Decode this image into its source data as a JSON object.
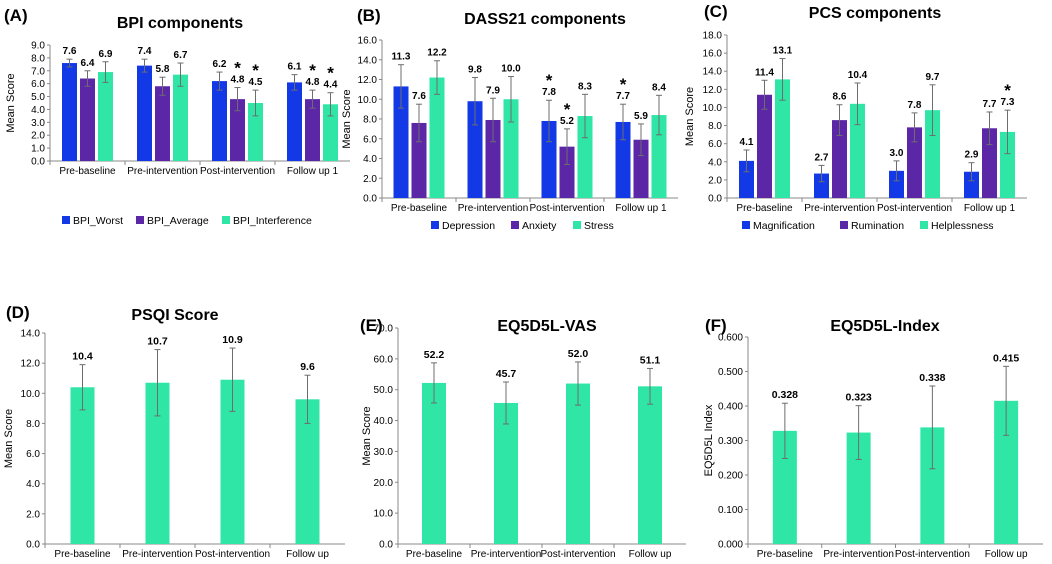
{
  "colors": {
    "blue": "#1338e6",
    "purple": "#5b27a6",
    "green": "#2fe6a7",
    "axis": "#888888",
    "text": "#000000",
    "errbar": "#6d6d6d"
  },
  "chart_data": [
    {
      "panel_label": "(A)",
      "title": "BPI components",
      "type": "bar",
      "ylabel": "Mean Score",
      "xlabel": "",
      "ylim": [
        0,
        9
      ],
      "ytick_step": 1,
      "ytick_decimals": 1,
      "value_decimals": 1,
      "categories": [
        "Pre-baseline",
        "Pre-intervention",
        "Post-intervention",
        "Follow up 1"
      ],
      "series": [
        {
          "name": "BPI_Worst",
          "color": "blue",
          "values": [
            7.6,
            7.4,
            6.2,
            6.1
          ],
          "err": [
            0.3,
            0.5,
            0.7,
            0.6
          ],
          "stars": [
            false,
            false,
            false,
            false
          ]
        },
        {
          "name": "BPI_Average",
          "color": "purple",
          "values": [
            6.4,
            5.8,
            4.8,
            4.8
          ],
          "err": [
            0.6,
            0.7,
            0.9,
            0.7
          ],
          "stars": [
            false,
            false,
            true,
            true
          ]
        },
        {
          "name": "BPI_Interference",
          "color": "green",
          "values": [
            6.9,
            6.7,
            4.5,
            4.4
          ],
          "err": [
            0.8,
            0.9,
            1.0,
            0.9
          ],
          "stars": [
            false,
            false,
            true,
            true
          ]
        }
      ],
      "grid": false,
      "legend": "bottom"
    },
    {
      "panel_label": "(B)",
      "title": "DASS21 components",
      "type": "bar",
      "ylabel": "Mean Score",
      "xlabel": "",
      "ylim": [
        0,
        16
      ],
      "ytick_step": 2,
      "ytick_decimals": 1,
      "value_decimals": 1,
      "categories": [
        "Pre-baseline",
        "Pre-intervention",
        "Post-intervention",
        "Follow up 1"
      ],
      "series": [
        {
          "name": "Depression",
          "color": "blue",
          "values": [
            11.3,
            9.8,
            7.8,
            7.7
          ],
          "err": [
            2.2,
            2.4,
            2.1,
            1.8
          ],
          "stars": [
            false,
            false,
            true,
            true
          ]
        },
        {
          "name": "Anxiety",
          "color": "purple",
          "values": [
            7.6,
            7.9,
            5.2,
            5.9
          ],
          "err": [
            1.9,
            2.2,
            1.8,
            1.6
          ],
          "stars": [
            false,
            false,
            true,
            false
          ]
        },
        {
          "name": "Stress",
          "color": "green",
          "values": [
            12.2,
            10.0,
            8.3,
            8.4
          ],
          "err": [
            1.7,
            2.3,
            2.2,
            2.0
          ],
          "stars": [
            false,
            false,
            false,
            false
          ]
        }
      ],
      "grid": false,
      "legend": "bottom"
    },
    {
      "panel_label": "(C)",
      "title": "PCS components",
      "type": "bar",
      "ylabel": "Mean Score",
      "xlabel": "",
      "ylim": [
        0,
        18
      ],
      "ytick_step": 2,
      "ytick_decimals": 1,
      "value_decimals": 1,
      "categories": [
        "Pre-baseline",
        "Pre-intervention",
        "Post-intervention",
        "Follow up 1"
      ],
      "series": [
        {
          "name": "Magnification",
          "color": "blue",
          "values": [
            4.1,
            2.7,
            3.0,
            2.9
          ],
          "err": [
            1.2,
            0.9,
            1.1,
            1.0
          ],
          "stars": [
            false,
            false,
            false,
            false
          ]
        },
        {
          "name": "Rumination",
          "color": "purple",
          "values": [
            11.4,
            8.6,
            7.8,
            7.7
          ],
          "err": [
            1.6,
            1.7,
            1.6,
            1.8
          ],
          "stars": [
            false,
            false,
            false,
            false
          ]
        },
        {
          "name": "Helplessness",
          "color": "green",
          "values": [
            13.1,
            10.4,
            9.7,
            7.3
          ],
          "err": [
            2.3,
            2.3,
            2.8,
            2.4
          ],
          "stars": [
            false,
            false,
            false,
            true
          ]
        }
      ],
      "grid": false,
      "legend": "bottom"
    },
    {
      "panel_label": "(D)",
      "title": "PSQI Score",
      "type": "bar",
      "ylabel": "Mean Score",
      "xlabel": "",
      "ylim": [
        0,
        14
      ],
      "ytick_step": 2,
      "ytick_decimals": 1,
      "value_decimals": 1,
      "categories": [
        "Pre-baseline",
        "Pre-intervention",
        "Post-intervention",
        "Follow up"
      ],
      "series": [
        {
          "name": "PSQI",
          "color": "green",
          "values": [
            10.4,
            10.7,
            10.9,
            9.6
          ],
          "err": [
            1.5,
            2.2,
            2.1,
            1.6
          ],
          "stars": [
            false,
            false,
            false,
            false
          ]
        }
      ],
      "grid": false,
      "legend": "none"
    },
    {
      "panel_label": "(E)",
      "title": "EQ5D5L-VAS",
      "type": "bar",
      "ylabel": "Mean Score",
      "xlabel": "",
      "ylim": [
        0,
        70
      ],
      "ytick_step": 10,
      "ytick_decimals": 1,
      "value_decimals": 1,
      "categories": [
        "Pre-baseline",
        "Pre-intervention",
        "Post-intervention",
        "Follow up"
      ],
      "series": [
        {
          "name": "VAS",
          "color": "green",
          "values": [
            52.2,
            45.7,
            52.0,
            51.1
          ],
          "err": [
            6.5,
            6.8,
            7.0,
            5.8
          ],
          "stars": [
            false,
            false,
            false,
            false
          ]
        }
      ],
      "grid": false,
      "legend": "none"
    },
    {
      "panel_label": "(F)",
      "title": "EQ5D5L-Index",
      "type": "bar",
      "ylabel": "EQ5D5L Index",
      "xlabel": "",
      "ylim": [
        0,
        0.6
      ],
      "ytick_step": 0.1,
      "ytick_decimals": 3,
      "value_decimals": 3,
      "categories": [
        "Pre-baseline",
        "Pre-intervention",
        "Post-intervention",
        "Follow up"
      ],
      "series": [
        {
          "name": "Index",
          "color": "green",
          "values": [
            0.328,
            0.323,
            0.338,
            0.415
          ],
          "err": [
            0.08,
            0.078,
            0.12,
            0.1
          ],
          "stars": [
            false,
            false,
            false,
            false
          ]
        }
      ],
      "grid": false,
      "legend": "none"
    }
  ]
}
